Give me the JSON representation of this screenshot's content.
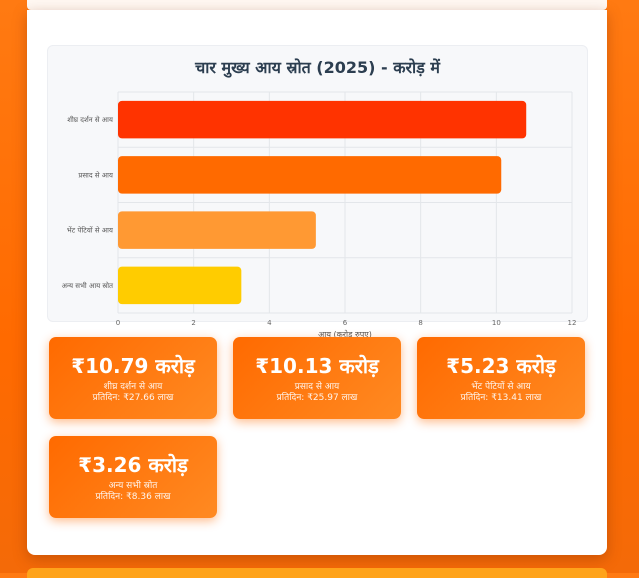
{
  "chart_data": {
    "type": "bar",
    "orientation": "horizontal",
    "title": "चार मुख्य आय स्रोत (2025) - करोड़ में",
    "xlabel": "आय (करोड़ रुपए)",
    "categories": [
      "शीघ्र दर्शन से आय",
      "प्रसाद से आय",
      "भेंट पेटियों से आय",
      "अन्य सभी आय स्रोत"
    ],
    "values": [
      10.79,
      10.13,
      5.23,
      3.26
    ],
    "colors": [
      "#ff3300",
      "#ff6a00",
      "#ff9933",
      "#ffcc00"
    ],
    "xlim": [
      0,
      12
    ],
    "xticks": [
      "0",
      "2",
      "4",
      "6",
      "8",
      "10",
      "12"
    ],
    "grid": true
  },
  "stats": [
    {
      "amount": "₹10.79 करोड़",
      "label": "शीघ्र दर्शन से आय",
      "daily": "प्रतिदिन: ₹27.66 लाख"
    },
    {
      "amount": "₹10.13 करोड़",
      "label": "प्रसाद से आय",
      "daily": "प्रतिदिन: ₹25.97 लाख"
    },
    {
      "amount": "₹5.23 करोड़",
      "label": "भेंट पेटियों से आय",
      "daily": "प्रतिदिन: ₹13.41 लाख"
    },
    {
      "amount": "₹3.26 करोड़",
      "label": "अन्य सभी स्रोत",
      "daily": "प्रतिदिन: ₹8.36 लाख"
    }
  ]
}
